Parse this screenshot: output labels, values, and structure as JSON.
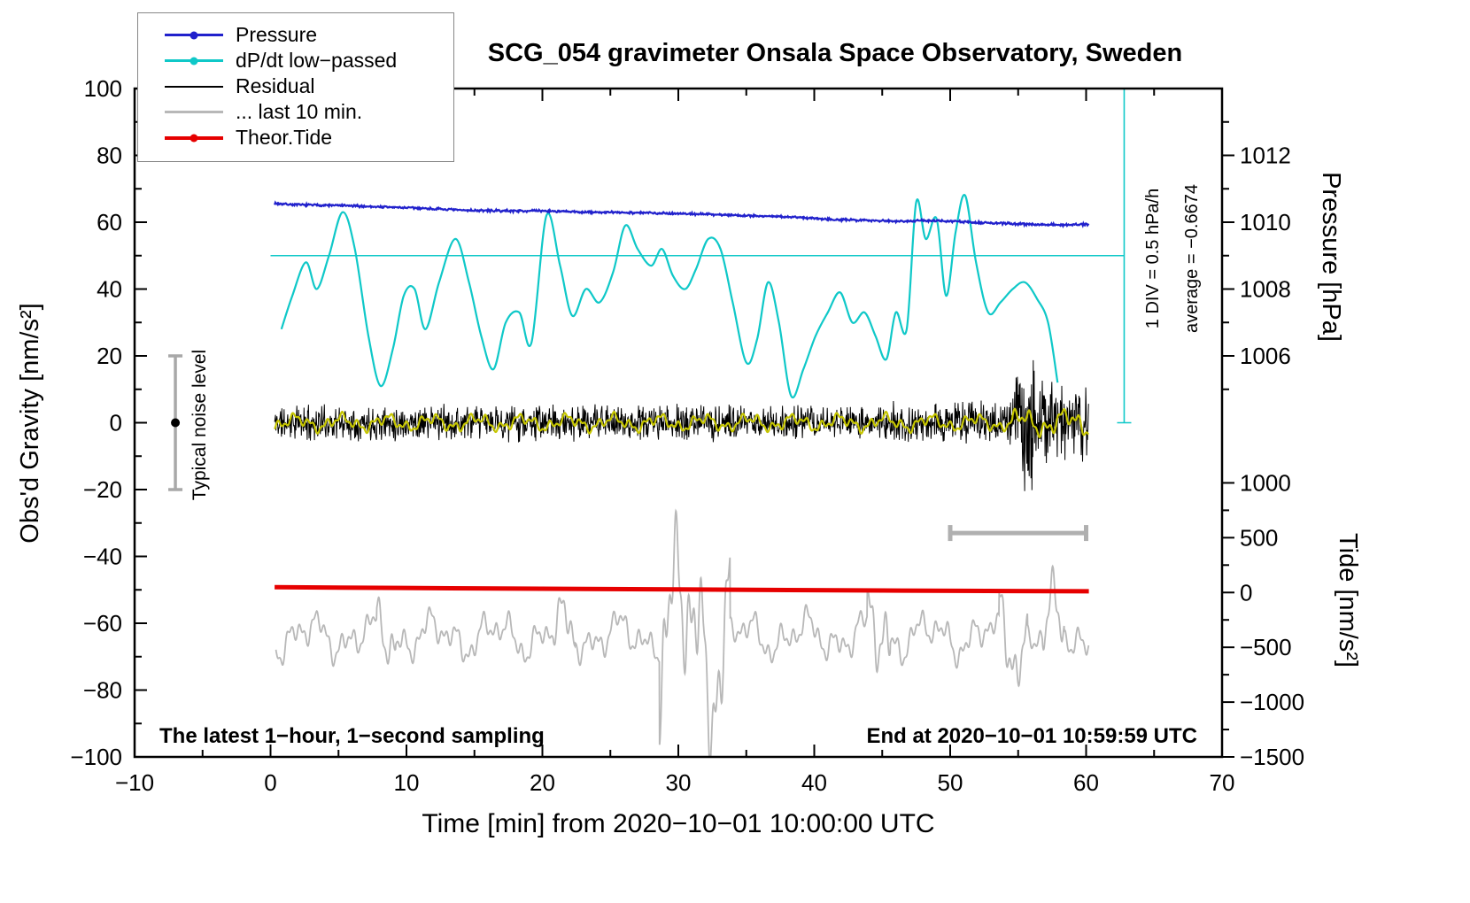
{
  "chart_data": {
    "type": "line",
    "title": "SCG_054 gravimeter Onsala Space Observatory, Sweden",
    "xlabel": "Time [min] from 2020−10−01 10:00:00 UTC",
    "ylabel_left": "Obs'd Gravity [nm/s²]",
    "ylabel_pressure": "Pressure [hPa]",
    "ylabel_tide": "Tide [nm/s²]",
    "footer_left": "The latest 1−hour, 1−second sampling",
    "footer_right": "End at 2020−10−01 10:59:59 UTC",
    "xlim": [
      -10,
      70
    ],
    "ylim_left": [
      -100,
      100
    ],
    "xticks": [
      -10,
      0,
      10,
      20,
      30,
      40,
      50,
      60,
      70
    ],
    "xticks_minor": [
      -5,
      5,
      15,
      25,
      35,
      45,
      55,
      65
    ],
    "yticks_left": [
      -100,
      -80,
      -60,
      -40,
      -20,
      0,
      20,
      40,
      60,
      80,
      100
    ],
    "yticks_left_minor": [
      -90,
      -70,
      -50,
      -30,
      -10,
      10,
      30,
      50,
      70,
      90
    ],
    "pressure_ticks": [
      1006,
      1008,
      1010,
      1012
    ],
    "pressure_ticks_minor": [
      1005,
      1007,
      1009,
      1011,
      1013
    ],
    "tide_ticks": [
      1000,
      500,
      0,
      -500,
      -1000,
      -1500
    ],
    "tide_ticks_minor": [
      750,
      250,
      -250,
      -750,
      -1250
    ],
    "pressure_axis_map": {
      "hpa_at_g0": 1004,
      "g_per_hpa": 10
    },
    "tide_axis_map": {
      "scale": 0.0328,
      "offset": -50.8
    },
    "legend": [
      {
        "label": "Pressure",
        "color": "#2121cc",
        "dot": true,
        "lw": 3
      },
      {
        "label": "dP/dt low−passed",
        "color": "#0fc8c8",
        "dot": true,
        "lw": 3
      },
      {
        "label": "Residual",
        "color": "#000000",
        "dot": false,
        "lw": 2
      },
      {
        "label": "... last 10 min.",
        "color": "#b8b8b8",
        "dot": false,
        "lw": 3
      },
      {
        "label": "Theor.Tide",
        "color": "#e60000",
        "dot": true,
        "lw": 4
      }
    ],
    "annotations": {
      "ref_line": {
        "g": 50,
        "t0": 0,
        "t1": 62.8,
        "color": "#0fc8c8"
      },
      "scale_bar": {
        "t": 62.8,
        "g0": 0,
        "g1": 100,
        "color": "#0fc8c8",
        "label_div": "1 DIV = 0.5 hPa/h",
        "label_avg": "average = −0.6674"
      },
      "noise_bar": {
        "t": -7,
        "g0": -20,
        "g1": 20,
        "dot_g": 0,
        "color": "#a8a8a8",
        "label": "Typical noise level"
      },
      "last10_bar": {
        "t0": 50,
        "t1": 60,
        "g": -33,
        "color": "#b0b0b0"
      }
    },
    "series": [
      {
        "name": "last-10-min-residual",
        "axis": "tide",
        "style": "wiggle",
        "color": "#b8b8b8",
        "width": 1.8,
        "t0": 0.4,
        "t1": 60.2,
        "step": 0.02,
        "seed": 42,
        "center": -400,
        "base_amp": 210,
        "freqs": [
          0.22,
          0.5,
          1.05,
          2.2
        ],
        "weights": [
          0.35,
          0.3,
          0.22,
          0.13
        ],
        "bursts": [
          {
            "t0": 28.6,
            "t1": 33.8,
            "amp": 900
          },
          {
            "t0": 43.9,
            "t1": 45.6,
            "amp": 480
          },
          {
            "t0": 53.6,
            "t1": 55.7,
            "amp": 430
          },
          {
            "t0": 56.8,
            "t1": 58.4,
            "amp": 430
          },
          {
            "t0": 7.8,
            "t1": 9.2,
            "amp": 320
          },
          {
            "t0": 20.8,
            "t1": 22.4,
            "amp": 320
          }
        ]
      },
      {
        "name": "theor-tide",
        "axis": "tide",
        "style": "smooth",
        "color": "#e60000",
        "width": 5,
        "points": [
          [
            0.3,
            48
          ],
          [
            15,
            38
          ],
          [
            30,
            28
          ],
          [
            45,
            18
          ],
          [
            60.2,
            11
          ]
        ]
      },
      {
        "name": "dpdt-lowpassed",
        "axis": "left",
        "style": "smooth",
        "color": "#0fc8c8",
        "width": 2.2,
        "points": [
          [
            0.8,
            28
          ],
          [
            1.6,
            38
          ],
          [
            2.6,
            48
          ],
          [
            3.4,
            40
          ],
          [
            4.3,
            50
          ],
          [
            5.3,
            63
          ],
          [
            6.2,
            52
          ],
          [
            7.2,
            26
          ],
          [
            8.1,
            11
          ],
          [
            9,
            22
          ],
          [
            9.8,
            38
          ],
          [
            10.6,
            40
          ],
          [
            11.4,
            28
          ],
          [
            12.4,
            42
          ],
          [
            13.6,
            55
          ],
          [
            14.6,
            42
          ],
          [
            15.5,
            26
          ],
          [
            16.4,
            16
          ],
          [
            17.3,
            30
          ],
          [
            18.3,
            33
          ],
          [
            19.2,
            24
          ],
          [
            20.3,
            62
          ],
          [
            21.3,
            47
          ],
          [
            22.2,
            32
          ],
          [
            23.2,
            40
          ],
          [
            24.2,
            36
          ],
          [
            25.2,
            45
          ],
          [
            26.1,
            59
          ],
          [
            27,
            52
          ],
          [
            28,
            47
          ],
          [
            28.8,
            52
          ],
          [
            29.6,
            44
          ],
          [
            30.5,
            40
          ],
          [
            31.3,
            46
          ],
          [
            32.2,
            55
          ],
          [
            33.1,
            52
          ],
          [
            34,
            36
          ],
          [
            35,
            18
          ],
          [
            35.8,
            25
          ],
          [
            36.6,
            42
          ],
          [
            37.4,
            30
          ],
          [
            38.3,
            8
          ],
          [
            39.2,
            16
          ],
          [
            40.1,
            26
          ],
          [
            41,
            33
          ],
          [
            41.9,
            39
          ],
          [
            42.8,
            30
          ],
          [
            43.7,
            33
          ],
          [
            44.5,
            26
          ],
          [
            45.3,
            19
          ],
          [
            46,
            33
          ],
          [
            46.8,
            28
          ],
          [
            47.5,
            66
          ],
          [
            48.2,
            55
          ],
          [
            49,
            61
          ],
          [
            49.7,
            38
          ],
          [
            50.4,
            57
          ],
          [
            51.1,
            68
          ],
          [
            51.9,
            48
          ],
          [
            52.8,
            33
          ],
          [
            53.7,
            36
          ],
          [
            54.6,
            40
          ],
          [
            55.5,
            42
          ],
          [
            56.4,
            37
          ],
          [
            57.2,
            30
          ],
          [
            57.9,
            12
          ]
        ]
      },
      {
        "name": "residual",
        "axis": "left",
        "style": "noise",
        "color": "#000000",
        "width": 1,
        "t0": 0.3,
        "t1": 60.2,
        "step": 0.0333,
        "seed": 11,
        "center": 0,
        "base_amp": 5,
        "bursts": [
          {
            "t0": 45,
            "t1": 54.6,
            "amp": 6
          },
          {
            "t0": 54.6,
            "t1": 56.3,
            "amp": 20
          },
          {
            "t0": 54.9,
            "t1": 55.6,
            "amp": 31
          },
          {
            "t0": 56.3,
            "t1": 60.2,
            "amp": 11
          }
        ]
      },
      {
        "name": "residual-lowpassed",
        "axis": "left",
        "style": "wiggle",
        "color": "#c6c600",
        "width": 2.2,
        "t0": 0.3,
        "t1": 60.2,
        "step": 0.03,
        "seed": 5,
        "center": 0,
        "base_amp": 2.2,
        "freqs": [
          0.3,
          0.85,
          1.9
        ],
        "weights": [
          0.45,
          0.35,
          0.2
        ],
        "bursts": [
          {
            "t0": 54.6,
            "t1": 60.2,
            "amp": 3.4
          }
        ]
      },
      {
        "name": "pressure",
        "axis": "pressure",
        "style": "noisy-line",
        "color": "#2121cc",
        "width": 2.2,
        "t0": 0.3,
        "t1": 60.2,
        "step": 0.05,
        "seed": 7,
        "noise_amp": 0.04,
        "points": [
          [
            0.3,
            1010.56
          ],
          [
            2,
            1010.52
          ],
          [
            5,
            1010.5
          ],
          [
            8,
            1010.46
          ],
          [
            11,
            1010.42
          ],
          [
            14,
            1010.36
          ],
          [
            17,
            1010.34
          ],
          [
            20,
            1010.34
          ],
          [
            23,
            1010.3
          ],
          [
            26,
            1010.29
          ],
          [
            29,
            1010.27
          ],
          [
            32,
            1010.24
          ],
          [
            35,
            1010.2
          ],
          [
            38,
            1010.16
          ],
          [
            40,
            1010.12
          ],
          [
            42,
            1010.07
          ],
          [
            44,
            1010.06
          ],
          [
            46,
            1010.03
          ],
          [
            48,
            1010.05
          ],
          [
            50,
            1010.03
          ],
          [
            52,
            1009.99
          ],
          [
            54,
            1009.96
          ],
          [
            56,
            1009.94
          ],
          [
            58,
            1009.92
          ],
          [
            59.5,
            1009.93
          ],
          [
            60.2,
            1009.94
          ]
        ]
      }
    ]
  }
}
